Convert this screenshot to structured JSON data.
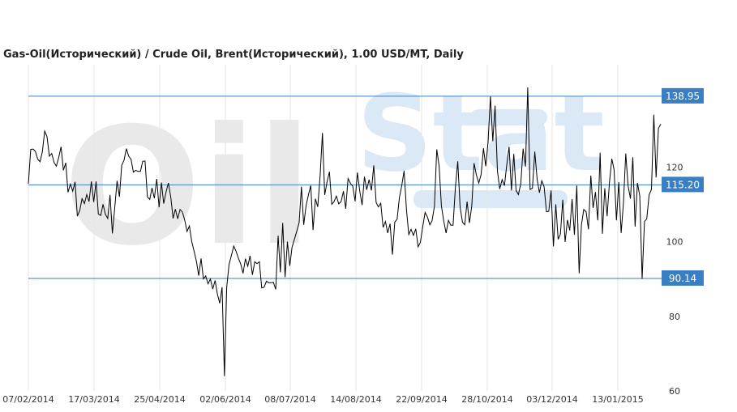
{
  "chart": {
    "title": "Gas-Oil(Исторический) / Crude Oil, Brent(Исторический), 1.00 USD/MT, Daily"
  },
  "watermark": {
    "left": "Oil",
    "right": "Stat"
  },
  "colors": {
    "line": "#000000",
    "ref_line": "#3a7fc1",
    "ref_label_bg": "#3a7fc1",
    "grid": "#e6e6e6",
    "watermark": "#e7e7e7",
    "watermark_blue": "#dbe9f6"
  },
  "chart_data": {
    "type": "line",
    "title": "Gas-Oil(Исторический) / Crude Oil, Brent(Исторический), 1.00 USD/MT, Daily",
    "x_ticks": [
      "07/02/2014",
      "17/03/2014",
      "25/04/2014",
      "02/06/2014",
      "08/07/2014",
      "14/08/2014",
      "22/09/2014",
      "28/10/2014",
      "03/12/2014",
      "13/01/2015"
    ],
    "y_ticks": [
      60,
      80,
      100,
      120
    ],
    "ylim": [
      60,
      140
    ],
    "grid": true,
    "reference_lines": [
      {
        "label": "138.95",
        "value": 138.95
      },
      {
        "label": "115.20",
        "value": 115.2
      },
      {
        "label": "90.14",
        "value": 90.14
      }
    ],
    "series": [
      {
        "values": [
          115.5,
          124.7,
          124.8,
          124.2,
          122.1,
          121.4,
          124.1,
          129.6,
          128.1,
          122.9,
          123.6,
          121.2,
          120.2,
          122.5,
          125.4,
          119.1,
          121.1,
          113.2,
          115.4,
          113.5,
          116.0,
          106.8,
          108.3,
          111.5,
          110.2,
          112.6,
          110.7,
          116.1,
          110.6,
          116.1,
          107.4,
          107.0,
          110.0,
          107.3,
          106.2,
          112.5,
          102.2,
          109.0,
          116.3,
          112.0,
          120.4,
          121.8,
          124.9,
          122.8,
          122.1,
          118.6,
          119.1,
          118.8,
          118.8,
          121.5,
          121.6,
          112.0,
          111.3,
          114.4,
          111.6,
          116.8,
          109.2,
          115.8,
          110.2,
          113.3,
          115.7,
          112.0,
          106.2,
          108.7,
          106.1,
          108.6,
          107.9,
          105.8,
          102.7,
          104.2,
          100.0,
          97.4,
          94.8,
          90.9,
          95.5,
          90.0,
          90.8,
          88.7,
          90.0,
          87.3,
          89.6,
          86.0,
          83.5,
          87.8,
          64.0,
          87.7,
          93.9,
          96.3,
          98.8,
          97.4,
          95.6,
          94.0,
          91.5,
          95.4,
          93.4,
          96.2,
          91.1,
          94.6,
          94.1,
          94.6,
          87.6,
          87.8,
          89.4,
          89.0,
          89.0,
          89.1,
          87.2,
          101.6,
          91.8,
          105.0,
          90.5,
          100.0,
          93.5,
          98.5,
          100.6,
          102.8,
          105.0,
          114.7,
          104.5,
          109.6,
          112.5,
          115.0,
          103.1,
          111.5,
          109.3,
          117.5,
          129.1,
          112.5,
          116.0,
          118.7,
          110.0,
          110.7,
          112.2,
          110.1,
          110.7,
          113.5,
          108.8,
          116.9,
          115.6,
          114.8,
          110.8,
          118.5,
          113.6,
          109.8,
          117.4,
          113.9,
          116.6,
          113.7,
          120.4,
          110.5,
          109.3,
          110.3,
          103.8,
          105.4,
          102.3,
          104.8,
          96.5,
          105.2,
          106.0,
          111.8,
          115.0,
          119.0,
          108.6,
          101.9,
          103.3,
          101.7,
          103.4,
          98.6,
          99.8,
          104.0,
          107.8,
          106.6,
          104.5,
          105.6,
          109.4,
          124.7,
          120.3,
          109.6,
          105.5,
          102.3,
          105.7,
          104.4,
          104.4,
          114.6,
          121.5,
          109.2,
          105.2,
          104.5,
          110.7,
          105.0,
          109.6,
          121.0,
          117.8,
          115.7,
          118.0,
          125.0,
          120.2,
          126.7,
          138.9,
          126.9,
          136.4,
          119.0,
          114.1,
          116.6,
          115.0,
          120.5,
          125.4,
          113.7,
          123.5,
          113.7,
          112.6,
          115.5,
          124.9,
          120.1,
          141.3,
          114.0,
          114.3,
          124.1,
          116.7,
          113.1,
          116.3,
          114.7,
          108.0,
          108.1,
          113.7,
          98.7,
          110.0,
          100.6,
          102.0,
          111.2,
          99.9,
          105.8,
          103.0,
          111.4,
          101.8,
          115.0,
          91.5,
          104.4,
          108.6,
          108.0,
          103.3,
          117.7,
          109.0,
          113.3,
          105.7,
          123.8,
          102.1,
          114.3,
          106.8,
          115.9,
          122.2,
          119.3,
          105.7,
          115.9,
          102.3,
          110.2,
          123.6,
          114.9,
          111.5,
          122.6,
          104.0,
          115.7,
          112.2,
          90.0,
          105.4,
          106.1,
          112.5,
          114.0,
          134.0,
          117.2,
          130.3,
          131.5
        ],
        "x_range": [
          "07/02/2014",
          "2015"
        ]
      }
    ]
  }
}
